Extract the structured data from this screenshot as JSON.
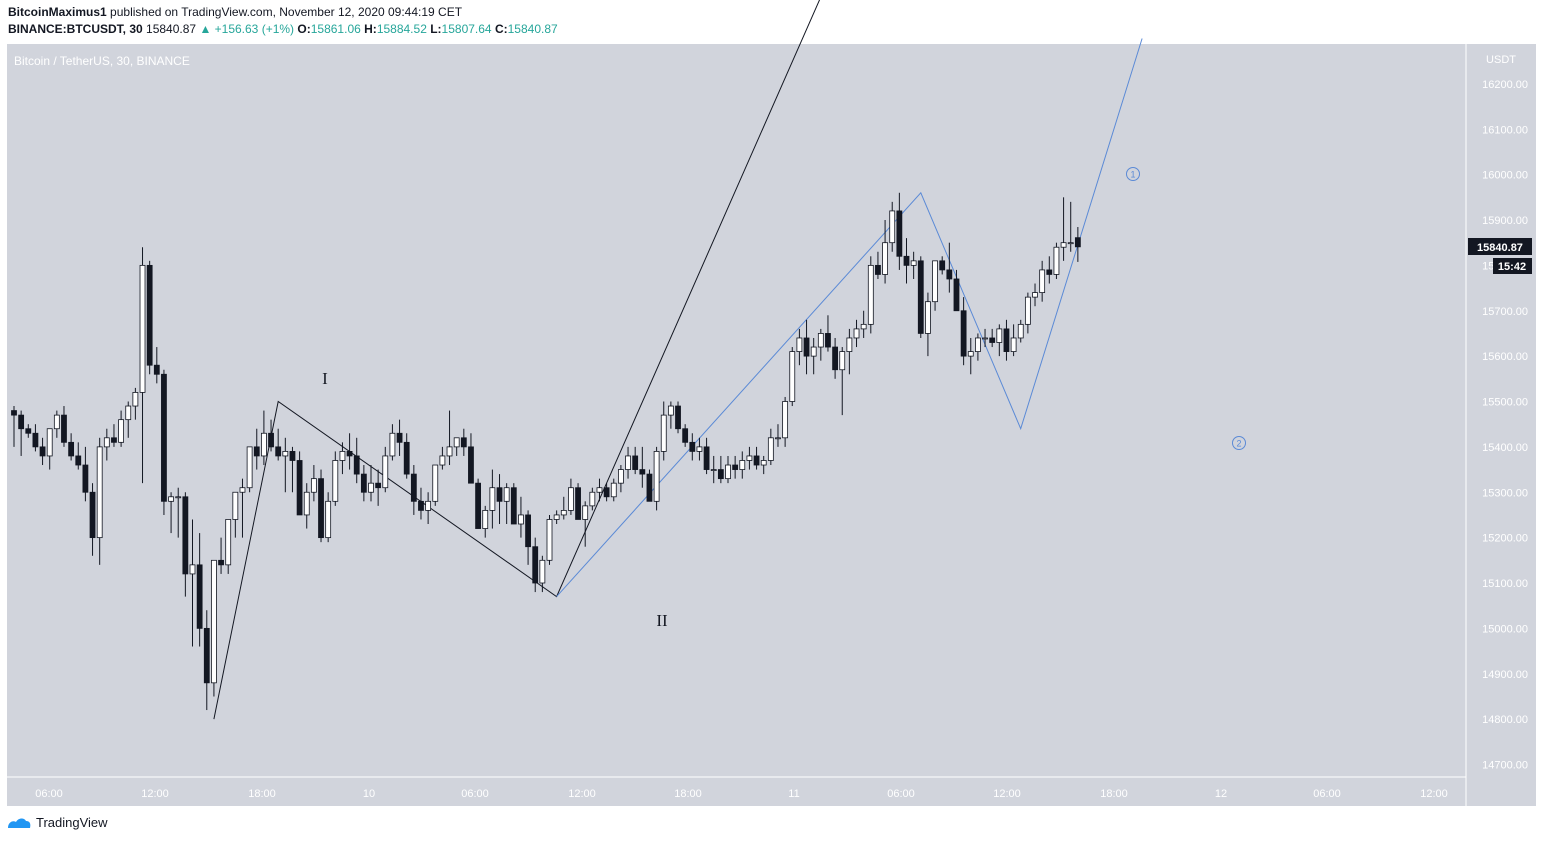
{
  "header": {
    "author": "BitcoinMaximus1",
    "published_text": "published on TradingView.com, November 12, 2020 09:44:19 CET",
    "symbol": "BINANCE:BTCUSDT, 30",
    "last": "15840.87",
    "change": "▲ +156.63 (+1%)",
    "o_label": "O:",
    "o_val": "15861.06",
    "h_label": "H:",
    "h_val": "15884.52",
    "l_label": "L:",
    "l_val": "15807.64",
    "c_label": "C:",
    "c_val": "15840.87"
  },
  "footer": {
    "brand": "TradingView"
  },
  "colors": {
    "background": "#d1d4dc",
    "candle_up_fill": "#ffffff",
    "candle_down_fill": "#131722",
    "wave_black": "#131722",
    "wave_blue": "#5b8ad6",
    "accent_green": "#26a69a"
  },
  "chart_data": {
    "type": "candlestick",
    "title": "Bitcoin / TetherUS, 30, BINANCE",
    "y_axis_currency": "USDT",
    "ylim": [
      14670,
      16300
    ],
    "y_ticks": [
      14700,
      14800,
      14900,
      15000,
      15100,
      15200,
      15300,
      15400,
      15500,
      15600,
      15700,
      15800,
      15900,
      16000,
      16100,
      16200
    ],
    "x_tick_labels": [
      "06:00",
      "12:00",
      "18:00",
      "10",
      "06:00",
      "12:00",
      "18:00",
      "11",
      "06:00",
      "12:00",
      "18:00",
      "12",
      "06:00",
      "12:00"
    ],
    "current_price_label": "15840.87",
    "countdown_label": "15:42",
    "candles": [
      [
        15480,
        15490,
        15400,
        15470
      ],
      [
        15470,
        15480,
        15380,
        15440
      ],
      [
        15440,
        15450,
        15420,
        15430
      ],
      [
        15430,
        15450,
        15390,
        15400
      ],
      [
        15400,
        15420,
        15360,
        15380
      ],
      [
        15380,
        15440,
        15350,
        15440
      ],
      [
        15440,
        15480,
        15420,
        15470
      ],
      [
        15470,
        15490,
        15400,
        15410
      ],
      [
        15410,
        15430,
        15370,
        15380
      ],
      [
        15380,
        15410,
        15350,
        15360
      ],
      [
        15360,
        15400,
        15280,
        15300
      ],
      [
        15300,
        15320,
        15160,
        15200
      ],
      [
        15200,
        15420,
        15140,
        15400
      ],
      [
        15400,
        15440,
        15370,
        15420
      ],
      [
        15420,
        15450,
        15400,
        15410
      ],
      [
        15410,
        15480,
        15400,
        15460
      ],
      [
        15460,
        15500,
        15420,
        15490
      ],
      [
        15490,
        15530,
        15460,
        15520
      ],
      [
        15520,
        15840,
        15320,
        15800
      ],
      [
        15800,
        15810,
        15560,
        15580
      ],
      [
        15580,
        15620,
        15540,
        15560
      ],
      [
        15560,
        15570,
        15250,
        15280
      ],
      [
        15280,
        15300,
        15210,
        15290
      ],
      [
        15290,
        15310,
        15200,
        15290
      ],
      [
        15290,
        15300,
        15070,
        15120
      ],
      [
        15120,
        15240,
        14960,
        15140
      ],
      [
        15140,
        15210,
        14960,
        15000
      ],
      [
        15000,
        15040,
        14820,
        14880
      ],
      [
        14880,
        15150,
        14850,
        15150
      ],
      [
        15150,
        15200,
        15120,
        15140
      ],
      [
        15140,
        15240,
        15120,
        15240
      ],
      [
        15240,
        15300,
        15200,
        15300
      ],
      [
        15300,
        15330,
        15200,
        15310
      ],
      [
        15310,
        15400,
        15300,
        15400
      ],
      [
        15400,
        15440,
        15350,
        15380
      ],
      [
        15380,
        15480,
        15360,
        15430
      ],
      [
        15430,
        15460,
        15390,
        15400
      ],
      [
        15400,
        15440,
        15370,
        15380
      ],
      [
        15380,
        15420,
        15300,
        15390
      ],
      [
        15390,
        15400,
        15300,
        15370
      ],
      [
        15370,
        15390,
        15250,
        15250
      ],
      [
        15250,
        15320,
        15220,
        15300
      ],
      [
        15300,
        15360,
        15280,
        15330
      ],
      [
        15330,
        15350,
        15190,
        15200
      ],
      [
        15200,
        15300,
        15190,
        15280
      ],
      [
        15280,
        15390,
        15270,
        15370
      ],
      [
        15370,
        15410,
        15340,
        15390
      ],
      [
        15390,
        15430,
        15350,
        15380
      ],
      [
        15380,
        15420,
        15320,
        15340
      ],
      [
        15340,
        15360,
        15280,
        15300
      ],
      [
        15300,
        15360,
        15280,
        15320
      ],
      [
        15320,
        15350,
        15270,
        15310
      ],
      [
        15310,
        15400,
        15300,
        15380
      ],
      [
        15380,
        15450,
        15370,
        15430
      ],
      [
        15430,
        15460,
        15380,
        15410
      ],
      [
        15410,
        15430,
        15330,
        15340
      ],
      [
        15340,
        15360,
        15250,
        15280
      ],
      [
        15280,
        15310,
        15240,
        15260
      ],
      [
        15260,
        15300,
        15230,
        15280
      ],
      [
        15280,
        15360,
        15270,
        15360
      ],
      [
        15360,
        15400,
        15350,
        15380
      ],
      [
        15380,
        15480,
        15360,
        15400
      ],
      [
        15400,
        15420,
        15380,
        15420
      ],
      [
        15420,
        15440,
        15380,
        15400
      ],
      [
        15400,
        15430,
        15330,
        15320
      ],
      [
        15320,
        15330,
        15220,
        15220
      ],
      [
        15220,
        15270,
        15200,
        15260
      ],
      [
        15260,
        15350,
        15220,
        15310
      ],
      [
        15310,
        15340,
        15230,
        15280
      ],
      [
        15280,
        15320,
        15230,
        15310
      ],
      [
        15310,
        15320,
        15230,
        15230
      ],
      [
        15230,
        15290,
        15200,
        15250
      ],
      [
        15250,
        15260,
        15140,
        15180
      ],
      [
        15180,
        15200,
        15080,
        15100
      ],
      [
        15100,
        15160,
        15080,
        15150
      ],
      [
        15150,
        15250,
        15140,
        15240
      ],
      [
        15240,
        15260,
        15230,
        15250
      ],
      [
        15250,
        15290,
        15240,
        15260
      ],
      [
        15260,
        15330,
        15250,
        15310
      ],
      [
        15310,
        15320,
        15240,
        15240
      ],
      [
        15240,
        15280,
        15180,
        15270
      ],
      [
        15270,
        15310,
        15260,
        15300
      ],
      [
        15300,
        15330,
        15280,
        15310
      ],
      [
        15310,
        15320,
        15280,
        15290
      ],
      [
        15290,
        15330,
        15280,
        15320
      ],
      [
        15320,
        15360,
        15300,
        15350
      ],
      [
        15350,
        15400,
        15330,
        15380
      ],
      [
        15380,
        15400,
        15340,
        15350
      ],
      [
        15350,
        15400,
        15310,
        15340
      ],
      [
        15340,
        15350,
        15280,
        15280
      ],
      [
        15280,
        15400,
        15260,
        15390
      ],
      [
        15390,
        15500,
        15370,
        15470
      ],
      [
        15470,
        15500,
        15440,
        15490
      ],
      [
        15490,
        15500,
        15430,
        15440
      ],
      [
        15440,
        15450,
        15400,
        15410
      ],
      [
        15410,
        15430,
        15370,
        15390
      ],
      [
        15390,
        15420,
        15370,
        15400
      ],
      [
        15400,
        15420,
        15340,
        15350
      ],
      [
        15350,
        15380,
        15320,
        15350
      ],
      [
        15350,
        15380,
        15320,
        15330
      ],
      [
        15330,
        15380,
        15320,
        15360
      ],
      [
        15360,
        15380,
        15330,
        15350
      ],
      [
        15350,
        15390,
        15330,
        15370
      ],
      [
        15370,
        15400,
        15350,
        15380
      ],
      [
        15380,
        15400,
        15350,
        15360
      ],
      [
        15360,
        15380,
        15340,
        15370
      ],
      [
        15370,
        15440,
        15360,
        15420
      ],
      [
        15420,
        15450,
        15400,
        15420
      ],
      [
        15420,
        15510,
        15400,
        15500
      ],
      [
        15500,
        15620,
        15490,
        15610
      ],
      [
        15610,
        15660,
        15580,
        15640
      ],
      [
        15640,
        15680,
        15560,
        15600
      ],
      [
        15600,
        15640,
        15560,
        15620
      ],
      [
        15620,
        15660,
        15590,
        15650
      ],
      [
        15650,
        15690,
        15610,
        15620
      ],
      [
        15620,
        15640,
        15550,
        15570
      ],
      [
        15570,
        15620,
        15470,
        15610
      ],
      [
        15610,
        15660,
        15560,
        15640
      ],
      [
        15640,
        15680,
        15620,
        15660
      ],
      [
        15660,
        15700,
        15640,
        15670
      ],
      [
        15670,
        15820,
        15650,
        15800
      ],
      [
        15800,
        15830,
        15770,
        15780
      ],
      [
        15780,
        15900,
        15760,
        15850
      ],
      [
        15850,
        15940,
        15830,
        15920
      ],
      [
        15920,
        15960,
        15790,
        15820
      ],
      [
        15820,
        15860,
        15760,
        15800
      ],
      [
        15800,
        15830,
        15770,
        15810
      ],
      [
        15810,
        15820,
        15640,
        15650
      ],
      [
        15650,
        15740,
        15600,
        15720
      ],
      [
        15720,
        15800,
        15700,
        15810
      ],
      [
        15810,
        15820,
        15780,
        15790
      ],
      [
        15790,
        15850,
        15740,
        15770
      ],
      [
        15770,
        15790,
        15700,
        15700
      ],
      [
        15700,
        15730,
        15580,
        15600
      ],
      [
        15600,
        15640,
        15560,
        15610
      ],
      [
        15610,
        15650,
        15590,
        15640
      ],
      [
        15640,
        15660,
        15620,
        15640
      ],
      [
        15640,
        15660,
        15620,
        15630
      ],
      [
        15630,
        15670,
        15600,
        15660
      ],
      [
        15660,
        15680,
        15590,
        15610
      ],
      [
        15610,
        15670,
        15600,
        15640
      ],
      [
        15640,
        15680,
        15630,
        15670
      ],
      [
        15670,
        15740,
        15650,
        15730
      ],
      [
        15730,
        15760,
        15710,
        15740
      ],
      [
        15740,
        15810,
        15720,
        15790
      ],
      [
        15790,
        15820,
        15760,
        15780
      ],
      [
        15780,
        15850,
        15770,
        15840
      ],
      [
        15840,
        15950,
        15810,
        15850
      ],
      [
        15850,
        15940,
        15830,
        15850
      ],
      [
        15861.06,
        15884.52,
        15807.64,
        15840.87
      ]
    ],
    "annotations": [
      {
        "text": "I",
        "kind": "wave_label"
      },
      {
        "text": "II",
        "kind": "wave_label"
      },
      {
        "text": "1",
        "kind": "circled_blue"
      },
      {
        "text": "2",
        "kind": "circled_blue"
      }
    ],
    "wave_lines": {
      "black": [
        [
          "09 17:00",
          14800
        ],
        [
          "09 21:30",
          15500
        ],
        [
          "10 17:00",
          15070
        ],
        [
          "11 14:00",
          16570
        ]
      ],
      "blue": [
        [
          "10 17:00",
          15070
        ],
        [
          "11 18:30",
          15960
        ],
        [
          "12 01:30",
          15440
        ],
        [
          "12 10:00",
          16300
        ]
      ]
    }
  }
}
